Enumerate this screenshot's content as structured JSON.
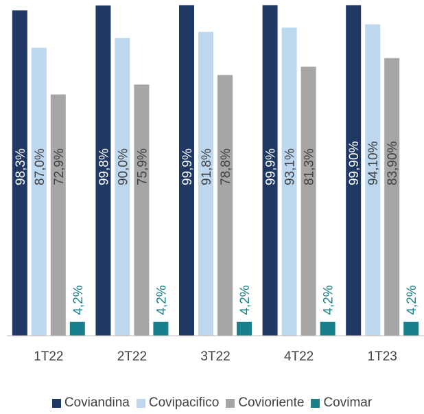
{
  "chart_data": {
    "type": "bar",
    "categories": [
      "1T22",
      "2T22",
      "3T22",
      "4T22",
      "1T23"
    ],
    "series": [
      {
        "name": "Coviandina",
        "color": "#1f3864",
        "values": [
          98.3,
          99.8,
          99.9,
          99.9,
          99.9
        ],
        "labels": [
          "98,3%",
          "99,8%",
          "99,9%",
          "99,9%",
          "99,90%"
        ]
      },
      {
        "name": "Covipacifico",
        "color": "#bdd7ee",
        "values": [
          87.0,
          90.0,
          91.8,
          93.1,
          94.1
        ],
        "labels": [
          "87,0%",
          "90,0%",
          "91,8%",
          "93,1%",
          "94,10%"
        ]
      },
      {
        "name": "Covioriente",
        "color": "#a6a6a6",
        "values": [
          72.9,
          75.9,
          78.8,
          81.3,
          83.9
        ],
        "labels": [
          "72,9%",
          "75,9%",
          "78,8%",
          "81,3%",
          "83,90%"
        ]
      },
      {
        "name": "Covimar",
        "color": "#17808a",
        "values": [
          4.2,
          4.2,
          4.2,
          4.2,
          4.2
        ],
        "labels": [
          "4,2%",
          "4,2%",
          "4,2%",
          "4,2%",
          "4,2%"
        ]
      }
    ],
    "ylim": [
      0,
      100
    ],
    "grid": false,
    "legend": "bottom",
    "label_colors": {
      "default": "#404040",
      "covimar": "#17808a"
    }
  }
}
